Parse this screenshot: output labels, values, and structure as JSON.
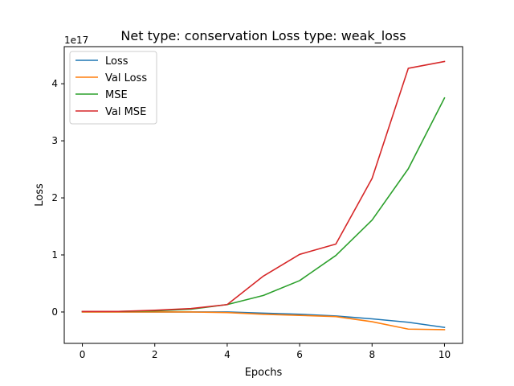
{
  "chart_data": {
    "type": "line",
    "title": "Net type: conservation Loss type: weak_loss",
    "xlabel": "Epochs",
    "ylabel": "Loss",
    "y_offset_label": "1e17",
    "x": [
      0,
      1,
      2,
      3,
      4,
      5,
      6,
      7,
      8,
      9,
      10
    ],
    "xlim": [
      -0.5,
      10.5
    ],
    "ylim": [
      -0.55,
      4.65
    ],
    "xticks": [
      0,
      2,
      4,
      6,
      8,
      10
    ],
    "yticks": [
      0,
      1,
      2,
      3,
      4
    ],
    "grid": false,
    "legend_position": "upper-left",
    "series": [
      {
        "name": "Loss",
        "color": "#1f77b4",
        "values": [
          0,
          0,
          0,
          0,
          0,
          -0.02,
          -0.04,
          -0.07,
          -0.12,
          -0.18,
          -0.27
        ]
      },
      {
        "name": "Val Loss",
        "color": "#ff7f0e",
        "values": [
          0,
          0,
          0,
          0,
          -0.01,
          -0.04,
          -0.06,
          -0.08,
          -0.17,
          -0.3,
          -0.31
        ]
      },
      {
        "name": "MSE",
        "color": "#2ca02c",
        "values": [
          0.01,
          0.01,
          0.02,
          0.05,
          0.13,
          0.29,
          0.55,
          0.99,
          1.61,
          2.51,
          3.75
        ]
      },
      {
        "name": "Val MSE",
        "color": "#d62728",
        "values": [
          0.01,
          0.01,
          0.03,
          0.06,
          0.13,
          0.63,
          1.01,
          1.19,
          2.34,
          4.27,
          4.39
        ]
      }
    ]
  }
}
